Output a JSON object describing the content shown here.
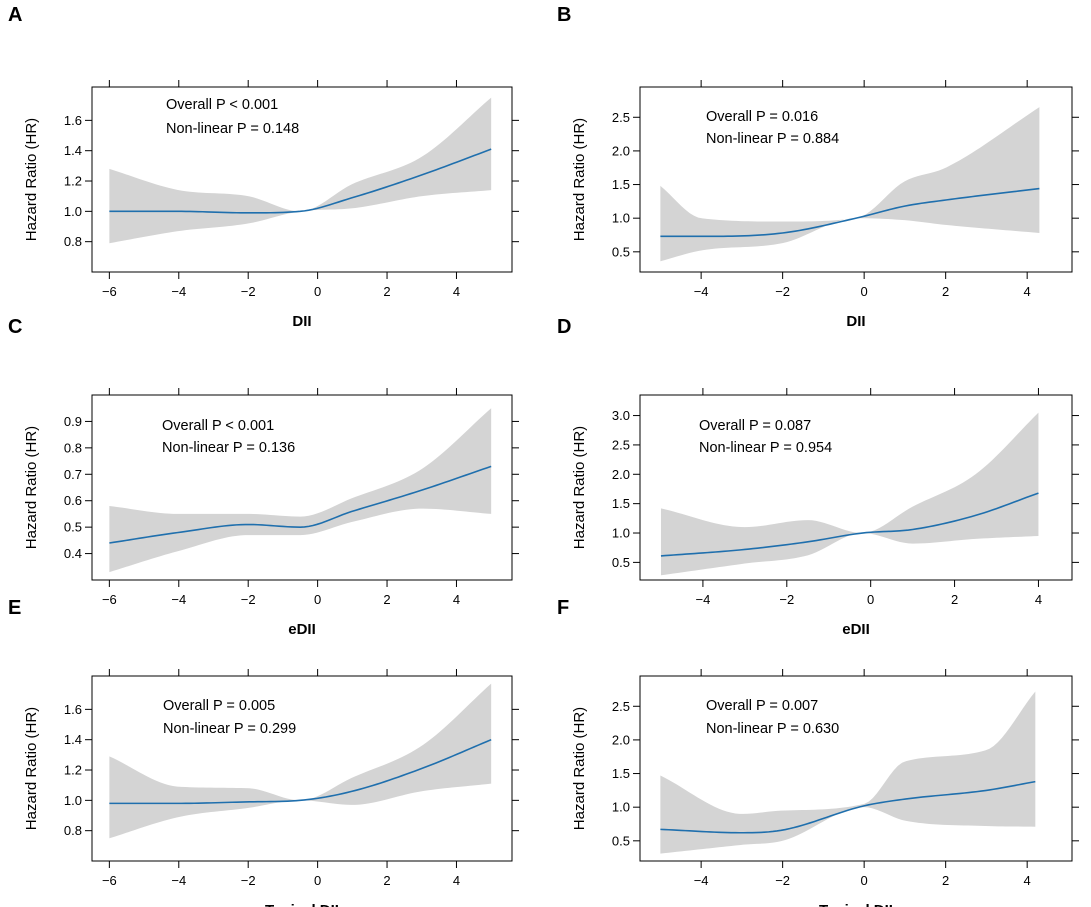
{
  "figure": {
    "background": "#ffffff",
    "line_color": "#1f6fad",
    "ci_color": "#d4d4d4"
  },
  "chart_data": [
    {
      "panel": "A",
      "type": "line",
      "xlabel": "DII",
      "ylabel": "Hazard Ratio (HR)",
      "xlim": [
        -6.5,
        5.6
      ],
      "ylim": [
        0.6,
        1.82
      ],
      "xticks": [
        -6,
        -4,
        -2,
        0,
        2,
        4
      ],
      "xtick_labels": [
        "−6",
        "−4",
        "−2",
        "0",
        "2",
        "4"
      ],
      "yticks": [
        0.8,
        1.0,
        1.2,
        1.4,
        1.6
      ],
      "ytick_labels": [
        "0.8",
        "1.0",
        "1.2",
        "1.4",
        "1.6"
      ],
      "annotations": [
        "Overall P < 0.001",
        "Non-linear P = 0.148"
      ],
      "x": [
        -6,
        -4,
        -2,
        -0.5,
        1,
        3,
        5
      ],
      "hr": [
        1.0,
        1.0,
        0.99,
        1.0,
        1.09,
        1.24,
        1.41
      ],
      "lower": [
        0.79,
        0.87,
        0.92,
        1.0,
        1.02,
        1.1,
        1.14
      ],
      "upper": [
        1.28,
        1.14,
        1.1,
        1.0,
        1.18,
        1.36,
        1.75
      ]
    },
    {
      "panel": "B",
      "type": "line",
      "xlabel": "DII",
      "ylabel": "Hazard Ratio (HR)",
      "xlim": [
        -5.5,
        5.1
      ],
      "ylim": [
        0.2,
        2.95
      ],
      "xticks": [
        -4,
        -2,
        0,
        2,
        4
      ],
      "xtick_labels": [
        "−4",
        "−2",
        "0",
        "2",
        "4"
      ],
      "yticks": [
        0.5,
        1.0,
        1.5,
        2.0,
        2.5
      ],
      "ytick_labels": [
        "0.5",
        "1.0",
        "1.5",
        "2.0",
        "2.5"
      ],
      "annotations": [
        "Overall P = 0.016",
        "Non-linear P = 0.884"
      ],
      "x": [
        -5,
        -4,
        -2,
        -0.2,
        1,
        2,
        4.3
      ],
      "hr": [
        0.73,
        0.73,
        0.78,
        1.0,
        1.18,
        1.27,
        1.44
      ],
      "lower": [
        0.36,
        0.52,
        0.63,
        1.0,
        0.97,
        0.9,
        0.78
      ],
      "upper": [
        1.48,
        1.0,
        0.95,
        1.0,
        1.55,
        1.75,
        2.65
      ]
    },
    {
      "panel": "C",
      "type": "line",
      "xlabel": "eDII",
      "ylabel": "Hazard Ratio (HR)",
      "xlim": [
        -6.5,
        5.6
      ],
      "ylim": [
        0.3,
        1.0
      ],
      "xticks": [
        -6,
        -4,
        -2,
        0,
        2,
        4
      ],
      "xtick_labels": [
        "−6",
        "−4",
        "−2",
        "0",
        "2",
        "4"
      ],
      "yticks": [
        0.4,
        0.5,
        0.6,
        0.7,
        0.8,
        0.9
      ],
      "ytick_labels": [
        "0.4",
        "0.5",
        "0.6",
        "0.7",
        "0.8",
        "0.9"
      ],
      "annotations": [
        "Overall P < 0.001",
        "Non-linear P = 0.136"
      ],
      "x": [
        -6,
        -4,
        -2,
        -0.5,
        1,
        3,
        5
      ],
      "hr": [
        0.44,
        0.48,
        0.51,
        0.5,
        0.56,
        0.64,
        0.73
      ],
      "lower": [
        0.33,
        0.41,
        0.47,
        0.47,
        0.52,
        0.57,
        0.55
      ],
      "upper": [
        0.58,
        0.55,
        0.55,
        0.54,
        0.61,
        0.72,
        0.95
      ]
    },
    {
      "panel": "D",
      "type": "line",
      "xlabel": "eDII",
      "ylabel": "Hazard Ratio (HR)",
      "xlim": [
        -5.5,
        4.8
      ],
      "ylim": [
        0.2,
        3.35
      ],
      "xticks": [
        -4,
        -2,
        0,
        2,
        4
      ],
      "xtick_labels": [
        "−4",
        "−2",
        "0",
        "2",
        "4"
      ],
      "yticks": [
        0.5,
        1.0,
        1.5,
        2.0,
        2.5,
        3.0
      ],
      "ytick_labels": [
        "0.5",
        "1.0",
        "1.5",
        "2.0",
        "2.5",
        "3.0"
      ],
      "annotations": [
        "Overall P = 0.087",
        "Non-linear P = 0.954"
      ],
      "x": [
        -5,
        -3,
        -1.5,
        -0.2,
        1,
        2.5,
        4
      ],
      "hr": [
        0.61,
        0.72,
        0.85,
        1.0,
        1.06,
        1.3,
        1.68
      ],
      "lower": [
        0.28,
        0.48,
        0.62,
        1.0,
        0.82,
        0.9,
        0.95
      ],
      "upper": [
        1.42,
        1.1,
        1.22,
        1.0,
        1.45,
        2.0,
        3.05
      ]
    },
    {
      "panel": "E",
      "type": "line",
      "xlabel": "Typical DII",
      "ylabel": "Hazard Ratio (HR)",
      "xlim": [
        -6.5,
        5.6
      ],
      "ylim": [
        0.6,
        1.82
      ],
      "xticks": [
        -6,
        -4,
        -2,
        0,
        2,
        4
      ],
      "xtick_labels": [
        "−6",
        "−4",
        "−2",
        "0",
        "2",
        "4"
      ],
      "yticks": [
        0.8,
        1.0,
        1.2,
        1.4,
        1.6
      ],
      "ytick_labels": [
        "0.8",
        "1.0",
        "1.2",
        "1.4",
        "1.6"
      ],
      "annotations": [
        "Overall P = 0.005",
        "Non-linear P = 0.299"
      ],
      "x": [
        -6,
        -4,
        -2,
        -0.5,
        1,
        3,
        5
      ],
      "hr": [
        0.98,
        0.98,
        0.99,
        1.0,
        1.06,
        1.21,
        1.4
      ],
      "lower": [
        0.75,
        0.89,
        0.95,
        1.0,
        0.97,
        1.06,
        1.11
      ],
      "upper": [
        1.29,
        1.09,
        1.08,
        1.0,
        1.15,
        1.36,
        1.77
      ]
    },
    {
      "panel": "F",
      "type": "line",
      "xlabel": "Typical DII",
      "ylabel": "Hazard Ratio (HR)",
      "xlim": [
        -5.5,
        5.1
      ],
      "ylim": [
        0.2,
        2.95
      ],
      "xticks": [
        -4,
        -2,
        0,
        2,
        4
      ],
      "xtick_labels": [
        "−4",
        "−2",
        "0",
        "2",
        "4"
      ],
      "yticks": [
        0.5,
        1.0,
        1.5,
        2.0,
        2.5
      ],
      "ytick_labels": [
        "0.5",
        "1.0",
        "1.5",
        "2.0",
        "2.5"
      ],
      "annotations": [
        "Overall P = 0.007",
        "Non-linear P = 0.630"
      ],
      "x": [
        -5,
        -3,
        -2,
        0,
        1,
        3,
        4.2
      ],
      "hr": [
        0.67,
        0.62,
        0.66,
        1.02,
        1.12,
        1.25,
        1.38
      ],
      "lower": [
        0.31,
        0.44,
        0.5,
        1.0,
        0.8,
        0.72,
        0.71
      ],
      "upper": [
        1.47,
        0.9,
        0.95,
        1.05,
        1.68,
        1.85,
        2.72
      ]
    }
  ]
}
